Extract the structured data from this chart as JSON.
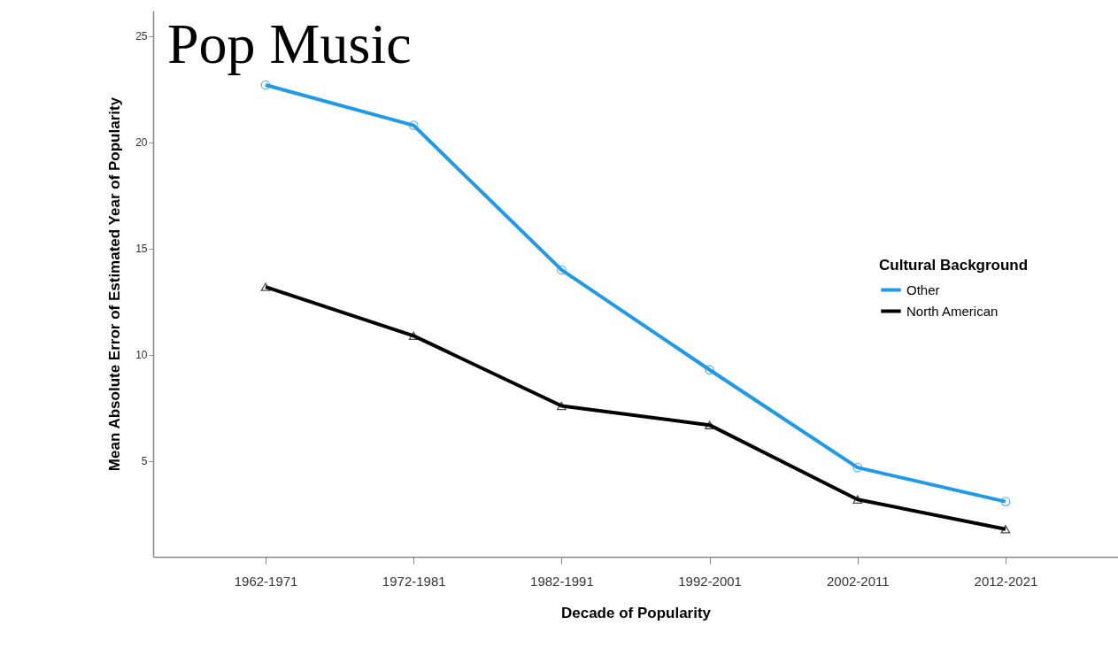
{
  "chart_data": {
    "type": "line",
    "title": "Pop Music",
    "xlabel": "Decade of Popularity",
    "ylabel": "Mean Absolute Error of Estimated Year of Popularity",
    "legend_title": "Cultural Background",
    "categories": [
      "1962-1971",
      "1972-1981",
      "1982-1991",
      "1992-2001",
      "2002-2011",
      "2012-2021"
    ],
    "series": [
      {
        "name": "Other",
        "color": "#1f9ae8",
        "marker": "circle",
        "values": [
          22.7,
          20.8,
          14.0,
          9.3,
          4.7,
          3.1
        ]
      },
      {
        "name": "North American",
        "color": "#000000",
        "marker": "triangle",
        "values": [
          13.2,
          10.9,
          7.6,
          6.7,
          3.2,
          1.8
        ]
      }
    ],
    "ylim": [
      0.5,
      26.2
    ],
    "yticks": [
      5,
      10,
      15,
      20,
      25
    ],
    "grid": false,
    "legend": "right",
    "line_style": "solid"
  }
}
